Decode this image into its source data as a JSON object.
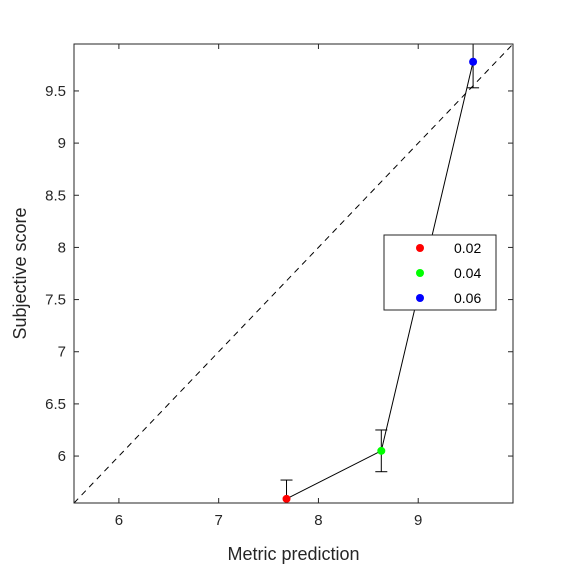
{
  "chart_data": {
    "type": "scatter",
    "xlabel": "Metric prediction",
    "ylabel": "Subjective score",
    "xlim": [
      5.55,
      9.95
    ],
    "ylim": [
      5.55,
      9.95
    ],
    "xticks": [
      6,
      7,
      8,
      9
    ],
    "yticks": [
      6,
      6.5,
      7,
      7.5,
      8,
      8.5,
      9,
      9.5
    ],
    "xtick_labels": [
      "6",
      "7",
      "8",
      "9"
    ],
    "ytick_labels": [
      "6",
      "6.5",
      "7",
      "7.5",
      "8",
      "8.5",
      "9",
      "9.5"
    ],
    "grid": false,
    "legend_position": "right",
    "identity_line": true,
    "series": [
      {
        "name": "0.02",
        "color": "#ff0000",
        "x": 7.68,
        "y": 5.59,
        "err_low": 0.04,
        "err_high": 0.18
      },
      {
        "name": "0.04",
        "color": "#00ff00",
        "x": 8.63,
        "y": 6.05,
        "err_low": 0.2,
        "err_high": 0.2
      },
      {
        "name": "0.06",
        "color": "#0000ff",
        "x": 9.55,
        "y": 9.78,
        "err_low": 0.25,
        "err_high": 0.2
      }
    ]
  }
}
